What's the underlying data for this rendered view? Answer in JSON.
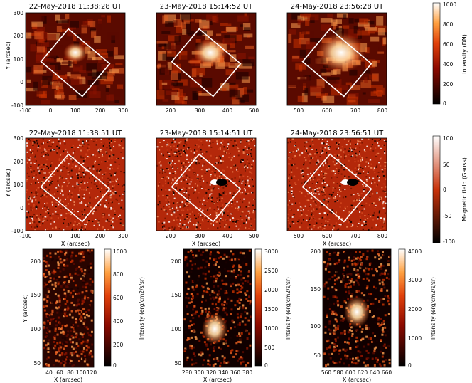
{
  "row1": {
    "titles": [
      "22-May-2018 11:38:28 UT",
      "23-May-2018 15:14:52 UT",
      "24-May-2018 23:56:28 UT"
    ],
    "ylabel": "Y (arcsec)",
    "yticks": [
      "300",
      "200",
      "100",
      "0",
      "-100"
    ],
    "xticks": [
      [
        "-100",
        "0",
        "100",
        "200",
        "300"
      ],
      [
        "200",
        "300",
        "400",
        "500"
      ],
      [
        "500",
        "600",
        "700",
        "800"
      ]
    ],
    "colorbar": {
      "label": "Intensity (DN)",
      "ticks": [
        "1000",
        "800",
        "600",
        "400",
        "200",
        "0"
      ]
    }
  },
  "row2": {
    "titles": [
      "22-May-2018 11:38:51 UT",
      "23-May-2018 15:14:51 UT",
      "24-May-2018 23:56:51 UT"
    ],
    "ylabel": "Y (arcsec)",
    "yticks": [
      "300",
      "200",
      "100",
      "0",
      "-100"
    ],
    "xlabel": "X (arcsec)",
    "xticks": [
      [
        "-100",
        "0",
        "100",
        "200",
        "300"
      ],
      [
        "200",
        "300",
        "400",
        "500"
      ],
      [
        "500",
        "600",
        "700",
        "800"
      ]
    ],
    "colorbar": {
      "label": "Magnetic field (Gauss)",
      "ticks": [
        "100",
        "50",
        "0",
        "-50",
        "-100"
      ]
    }
  },
  "row3": {
    "ylabel": "Y (arcsec)",
    "xlabel": "X (arcsec)",
    "panels": [
      {
        "yticks": [
          "200",
          "150",
          "100",
          "50"
        ],
        "xticks": [
          "40",
          "60",
          "80",
          "100",
          "120"
        ],
        "cbar_label": "Intensity (erg/cm2/s/sr)",
        "cbar_ticks": [
          "1000",
          "800",
          "600",
          "400",
          "200",
          "0"
        ]
      },
      {
        "yticks": [
          "200",
          "150",
          "100",
          "50"
        ],
        "xticks": [
          "280",
          "300",
          "320",
          "340",
          "360",
          "380"
        ],
        "cbar_label": "Intensity (erg/cm2/s/sr)",
        "cbar_ticks": [
          "3000",
          "2500",
          "2000",
          "1500",
          "1000",
          "500",
          "0"
        ]
      },
      {
        "yticks": [
          "200",
          "150",
          "100",
          "50"
        ],
        "xticks": [
          "560",
          "580",
          "600",
          "620",
          "640",
          "660"
        ],
        "cbar_label": "Intensity (erg/cm2/s/sr)",
        "cbar_ticks": [
          "4000",
          "3000",
          "2000",
          "1000",
          "0"
        ]
      }
    ]
  },
  "colors": {
    "hot_dark": "#000000",
    "hot_mid": "#c81e00",
    "hot_bright": "#ffffff"
  }
}
